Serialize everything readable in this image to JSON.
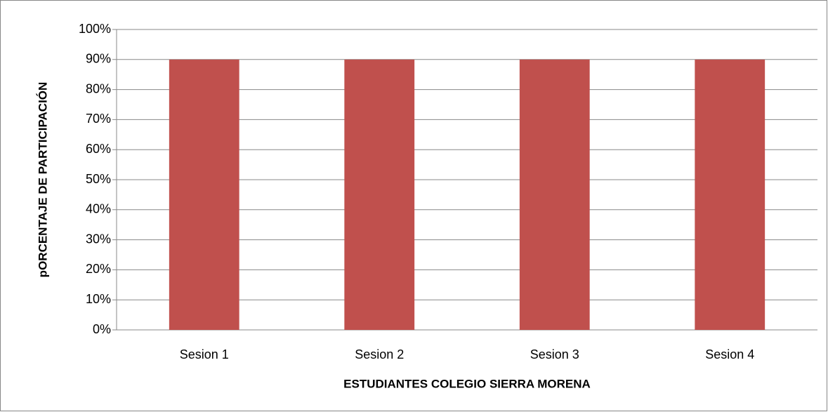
{
  "chart_data": {
    "type": "bar",
    "x_label": "ESTUDIANTES COLEGIO SIERRA MORENA",
    "y_label": "pORCENTAJE DE PARTICIPACIÓN",
    "categories": [
      "Sesion 1",
      "Sesion 2",
      "Sesion 3",
      "Sesion 4"
    ],
    "values": [
      90,
      90,
      90,
      90
    ],
    "color": "#c0504d",
    "ylim": [
      0,
      100
    ],
    "yticks": [
      {
        "value": 0,
        "label": "0%"
      },
      {
        "value": 10,
        "label": "10%"
      },
      {
        "value": 20,
        "label": "20%"
      },
      {
        "value": 30,
        "label": "30%"
      },
      {
        "value": 40,
        "label": "40%"
      },
      {
        "value": 50,
        "label": "50%"
      },
      {
        "value": 60,
        "label": "60%"
      },
      {
        "value": 70,
        "label": "70%"
      },
      {
        "value": 80,
        "label": "80%"
      },
      {
        "value": 90,
        "label": "90%"
      },
      {
        "value": 100,
        "label": "100%"
      }
    ],
    "grid": true
  }
}
